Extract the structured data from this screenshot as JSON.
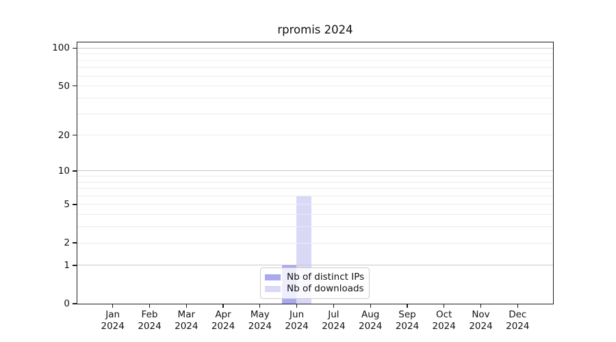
{
  "title": "rpromis 2024",
  "chart_data": {
    "type": "bar",
    "title": "rpromis 2024",
    "categories": [
      {
        "month": "Jan",
        "year": "2024"
      },
      {
        "month": "Feb",
        "year": "2024"
      },
      {
        "month": "Mar",
        "year": "2024"
      },
      {
        "month": "Apr",
        "year": "2024"
      },
      {
        "month": "May",
        "year": "2024"
      },
      {
        "month": "Jun",
        "year": "2024"
      },
      {
        "month": "Jul",
        "year": "2024"
      },
      {
        "month": "Aug",
        "year": "2024"
      },
      {
        "month": "Sep",
        "year": "2024"
      },
      {
        "month": "Oct",
        "year": "2024"
      },
      {
        "month": "Nov",
        "year": "2024"
      },
      {
        "month": "Dec",
        "year": "2024"
      }
    ],
    "series": [
      {
        "name": "Nb of distinct IPs",
        "color": "#a9a9ef",
        "values": [
          0,
          0,
          0,
          0,
          0,
          1,
          0,
          0,
          0,
          0,
          0,
          0
        ]
      },
      {
        "name": "Nb of downloads",
        "color": "#d9d9f7",
        "values": [
          0,
          0,
          0,
          0,
          0,
          6,
          0,
          0,
          0,
          0,
          0,
          0
        ]
      }
    ],
    "xlabel": "",
    "ylabel": "",
    "y_axis": {
      "scale": "log10(1+value)",
      "ticks": [
        0,
        1,
        2,
        5,
        10,
        20,
        50,
        100
      ],
      "strong_grid_ticks": [
        1,
        10,
        100
      ],
      "minor_ticks": [
        3,
        4,
        6,
        7,
        8,
        9,
        30,
        40,
        60,
        70,
        80,
        90
      ],
      "range_max": 111
    },
    "grid": "on",
    "legend_position": "bottom-center",
    "style": {
      "grid_strong_color": "#c8c8c8",
      "grid_minor_color": "#ececec",
      "spine_color": "#1a1a1a",
      "legend_border_color": "#cccccc",
      "legend_bg": "rgba(255,255,255,0.8)"
    }
  }
}
